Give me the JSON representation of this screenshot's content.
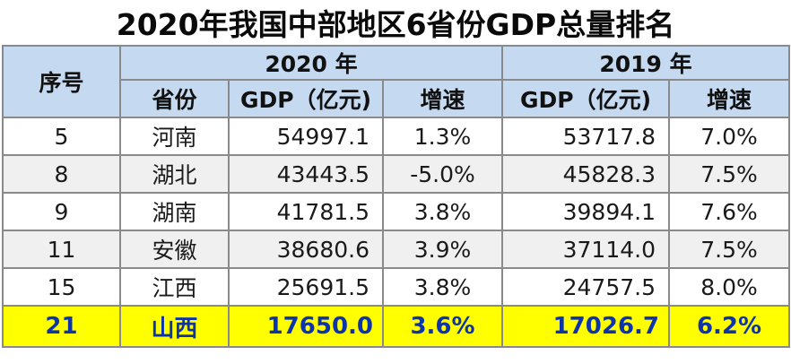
{
  "title": "2020年我国中部地区6省份GDP总量排名",
  "header": {
    "rank_label": "序号",
    "year_2020": "2020 年",
    "year_2019": "2019 年",
    "province_label": "省份",
    "gdp_2020_label": "GDP（亿元)",
    "growth_2020_label": "增速",
    "gdp_2019_label": "GDP（亿元)",
    "growth_2019_label": "增速"
  },
  "rows": [
    {
      "rank": "5",
      "province": "河南",
      "gdp2020": "54997.1",
      "growth2020": "1.3%",
      "gdp2019": "53717.8",
      "growth2019": "7.0%"
    },
    {
      "rank": "8",
      "province": "湖北",
      "gdp2020": "43443.5",
      "growth2020": "-5.0%",
      "gdp2019": "45828.3",
      "growth2019": "7.5%"
    },
    {
      "rank": "9",
      "province": "湖南",
      "gdp2020": "41781.5",
      "growth2020": "3.8%",
      "gdp2019": "39894.1",
      "growth2019": "7.6%"
    },
    {
      "rank": "11",
      "province": "安徽",
      "gdp2020": "38680.6",
      "growth2020": "3.9%",
      "gdp2019": "37114.0",
      "growth2019": "7.5%"
    },
    {
      "rank": "15",
      "province": "江西",
      "gdp2020": "25691.5",
      "growth2020": "3.8%",
      "gdp2019": "24757.5",
      "growth2019": "8.0%"
    },
    {
      "rank": "21",
      "province": "山西",
      "gdp2020": "17650.0",
      "growth2020": "3.6%",
      "gdp2019": "17026.7",
      "growth2019": "6.2%"
    }
  ],
  "colors": {
    "header_bg": "#c5d9f0",
    "alt_row_bg": "#f0f0f0",
    "highlight_bg": "#ffff00",
    "highlight_text": "#0d33ad"
  }
}
